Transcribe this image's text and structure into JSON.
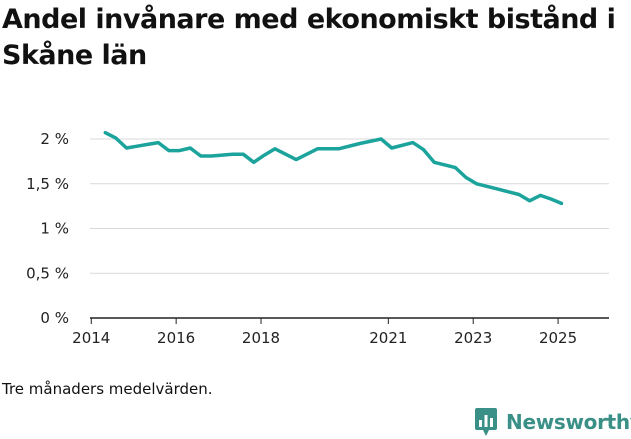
{
  "title": "Andel invånare med ekonomiskt bistånd i Skåne län",
  "caption": "Tre månaders medelvärden.",
  "brand": {
    "name": "Newsworthy",
    "logo_icon": "bar-chart-pin-icon",
    "color": "#3a8f86"
  },
  "chart_data": {
    "type": "line",
    "title": "Andel invånare med ekonomiskt bistånd i Skåne län",
    "xlabel": "",
    "ylabel": "",
    "xlim": [
      2013.97,
      2026.2
    ],
    "ylim": [
      0,
      2
    ],
    "y_ticks": [
      0,
      0.5,
      1,
      1.5,
      2
    ],
    "y_tick_labels": [
      "0 %",
      "0,5 %",
      "1 %",
      "1,5 %",
      "2 %"
    ],
    "x_ticks": [
      2014,
      2016,
      2018,
      2021,
      2023,
      2025
    ],
    "x_tick_labels": [
      "2014",
      "2016",
      "2018",
      "2021",
      "2023",
      "2025"
    ],
    "grid": true,
    "series": [
      {
        "name": "Andel invånare med ekonomiskt bistånd",
        "color": "#1ba39c",
        "x": [
          2014.33,
          2014.58,
          2014.83,
          2015.08,
          2015.33,
          2015.58,
          2015.83,
          2016.08,
          2016.33,
          2016.58,
          2016.83,
          2017.08,
          2017.33,
          2017.58,
          2017.83,
          2018.08,
          2018.33,
          2018.83,
          2019.33,
          2019.83,
          2020.33,
          2020.83,
          2021.08,
          2021.58,
          2021.83,
          2022.08,
          2022.58,
          2022.83,
          2023.08,
          2023.58,
          2023.83,
          2024.08,
          2024.33,
          2024.58,
          2024.83,
          2025.08
        ],
        "values": [
          2.07,
          2.01,
          1.9,
          1.92,
          1.94,
          1.96,
          1.87,
          1.87,
          1.9,
          1.81,
          1.81,
          1.82,
          1.83,
          1.83,
          1.74,
          1.82,
          1.89,
          1.77,
          1.89,
          1.89,
          1.95,
          2.0,
          1.9,
          1.96,
          1.88,
          1.74,
          1.68,
          1.57,
          1.5,
          1.44,
          1.41,
          1.38,
          1.31,
          1.37,
          1.33,
          1.28
        ]
      }
    ]
  }
}
